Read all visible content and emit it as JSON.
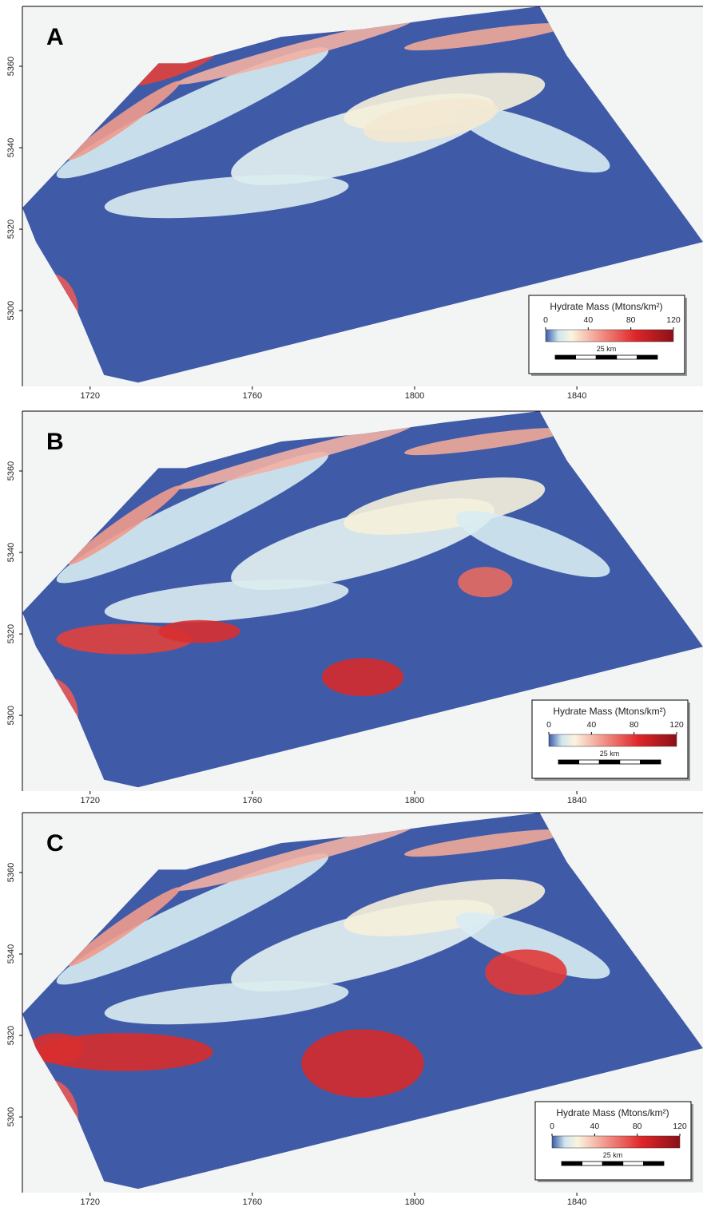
{
  "panels": [
    {
      "label": "A",
      "xlim": [
        1703.3,
        1871.1
      ],
      "ylim": [
        5281.4,
        5374.7
      ],
      "xticks": [
        1720,
        1760,
        1800,
        1840
      ],
      "yticks": [
        5300,
        5320,
        5340,
        5360
      ],
      "colorbar": {
        "title": "Hydrate Mass (Mtons/km²)",
        "lim": [
          0,
          120
        ],
        "ticks": [
          0,
          40,
          80,
          120
        ]
      },
      "scale_bar": "25 km"
    },
    {
      "label": "B",
      "xlim": [
        1703.3,
        1871.1
      ],
      "ylim": [
        5281.4,
        5374.7
      ],
      "xticks": [
        1720,
        1760,
        1800,
        1840
      ],
      "yticks": [
        5300,
        5320,
        5340,
        5360
      ],
      "colorbar": {
        "title": "Hydrate Mass (Mtons/km²)",
        "lim": [
          0,
          120
        ],
        "ticks": [
          0,
          40,
          80,
          120
        ]
      },
      "scale_bar": "25 km"
    },
    {
      "label": "C",
      "xlim": [
        1703.3,
        1871.1
      ],
      "ylim": [
        5281.4,
        5374.7
      ],
      "xticks": [
        1720,
        1760,
        1800,
        1840
      ],
      "yticks": [
        5300,
        5320,
        5340,
        5360
      ],
      "colorbar": {
        "title": "Hydrate Mass (Mtons/km²)",
        "lim": [
          0,
          120
        ],
        "ticks": [
          0,
          40,
          80,
          120
        ]
      },
      "scale_bar": "25 km"
    }
  ]
}
